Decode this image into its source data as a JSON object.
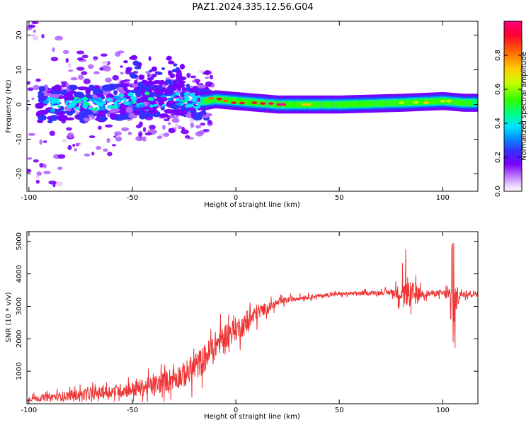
{
  "title": "PAZ1.2024.335.12.56.G04",
  "chart_data": [
    {
      "type": "heatmap",
      "title": "PAZ1.2024.335.12.56.G04",
      "xlabel": "Height of straight line (km)",
      "ylabel": "Frequency (Hz)",
      "xlim": [
        -101,
        117
      ],
      "ylim": [
        -25,
        24
      ],
      "x_ticks": [
        -100,
        -50,
        0,
        50,
        100
      ],
      "y_ticks": [
        -20,
        -10,
        0,
        10,
        20
      ],
      "colorbar": {
        "label": "Normalized spectral amplitude",
        "range": [
          0,
          1
        ],
        "ticks": [
          "0.0",
          "0.2",
          "0.4",
          "0.6",
          "0.8"
        ],
        "colormap": [
          "#ffffff",
          "#e6ccff",
          "#b266ff",
          "#7a00ff",
          "#3333ff",
          "#0099ff",
          "#00e5ff",
          "#00ff80",
          "#33ff00",
          "#ccff00",
          "#ffcc00",
          "#ff6600",
          "#ff0033",
          "#ff0080"
        ]
      },
      "ridge": {
        "description_points_x": [
          -90,
          -70,
          -50,
          -30,
          -20,
          -15,
          -10,
          0,
          10,
          20,
          50,
          80,
          100,
          110,
          117
        ],
        "center_freq_hz": [
          0,
          0,
          1,
          2,
          1,
          1,
          1.5,
          1,
          0.5,
          0,
          0,
          0.5,
          1,
          0.5,
          0.5
        ],
        "amplitude": [
          0.35,
          0.3,
          0.35,
          0.3,
          0.25,
          0.45,
          0.6,
          0.75,
          0.85,
          0.9,
          0.55,
          0.55,
          0.6,
          0.5,
          0.4
        ]
      }
    },
    {
      "type": "line",
      "xlabel": "Height of straight line (km)",
      "ylabel": "SNR (10 * v/v)",
      "xlim": [
        -101,
        117
      ],
      "ylim": [
        0,
        5300
      ],
      "x_ticks": [
        -100,
        -50,
        0,
        50,
        100
      ],
      "y_ticks": [
        1000,
        2000,
        3000,
        4000,
        5000
      ],
      "color": "#ee3333",
      "series": [
        {
          "envelope_x": [
            -101,
            -90,
            -80,
            -70,
            -60,
            -50,
            -40,
            -30,
            -25,
            -20,
            -15,
            -10,
            -5,
            0,
            5,
            10,
            15,
            20,
            25,
            30,
            40,
            50,
            60,
            70,
            75,
            80,
            85,
            90,
            95,
            100,
            103,
            105,
            107,
            110,
            117
          ],
          "mean": [
            150,
            200,
            250,
            300,
            380,
            450,
            550,
            800,
            900,
            1100,
            1400,
            1800,
            2100,
            2300,
            2450,
            2800,
            2950,
            3100,
            3200,
            3250,
            3320,
            3380,
            3400,
            3420,
            3430,
            3400,
            3350,
            3380,
            3400,
            3400,
            3350,
            2500,
            3350,
            3400,
            3380
          ],
          "spread": [
            120,
            200,
            250,
            300,
            320,
            400,
            500,
            600,
            650,
            700,
            750,
            700,
            650,
            600,
            550,
            450,
            250,
            200,
            150,
            120,
            100,
            100,
            100,
            110,
            150,
            500,
            700,
            200,
            150,
            150,
            400,
            1400,
            500,
            200,
            150
          ]
        }
      ]
    }
  ]
}
